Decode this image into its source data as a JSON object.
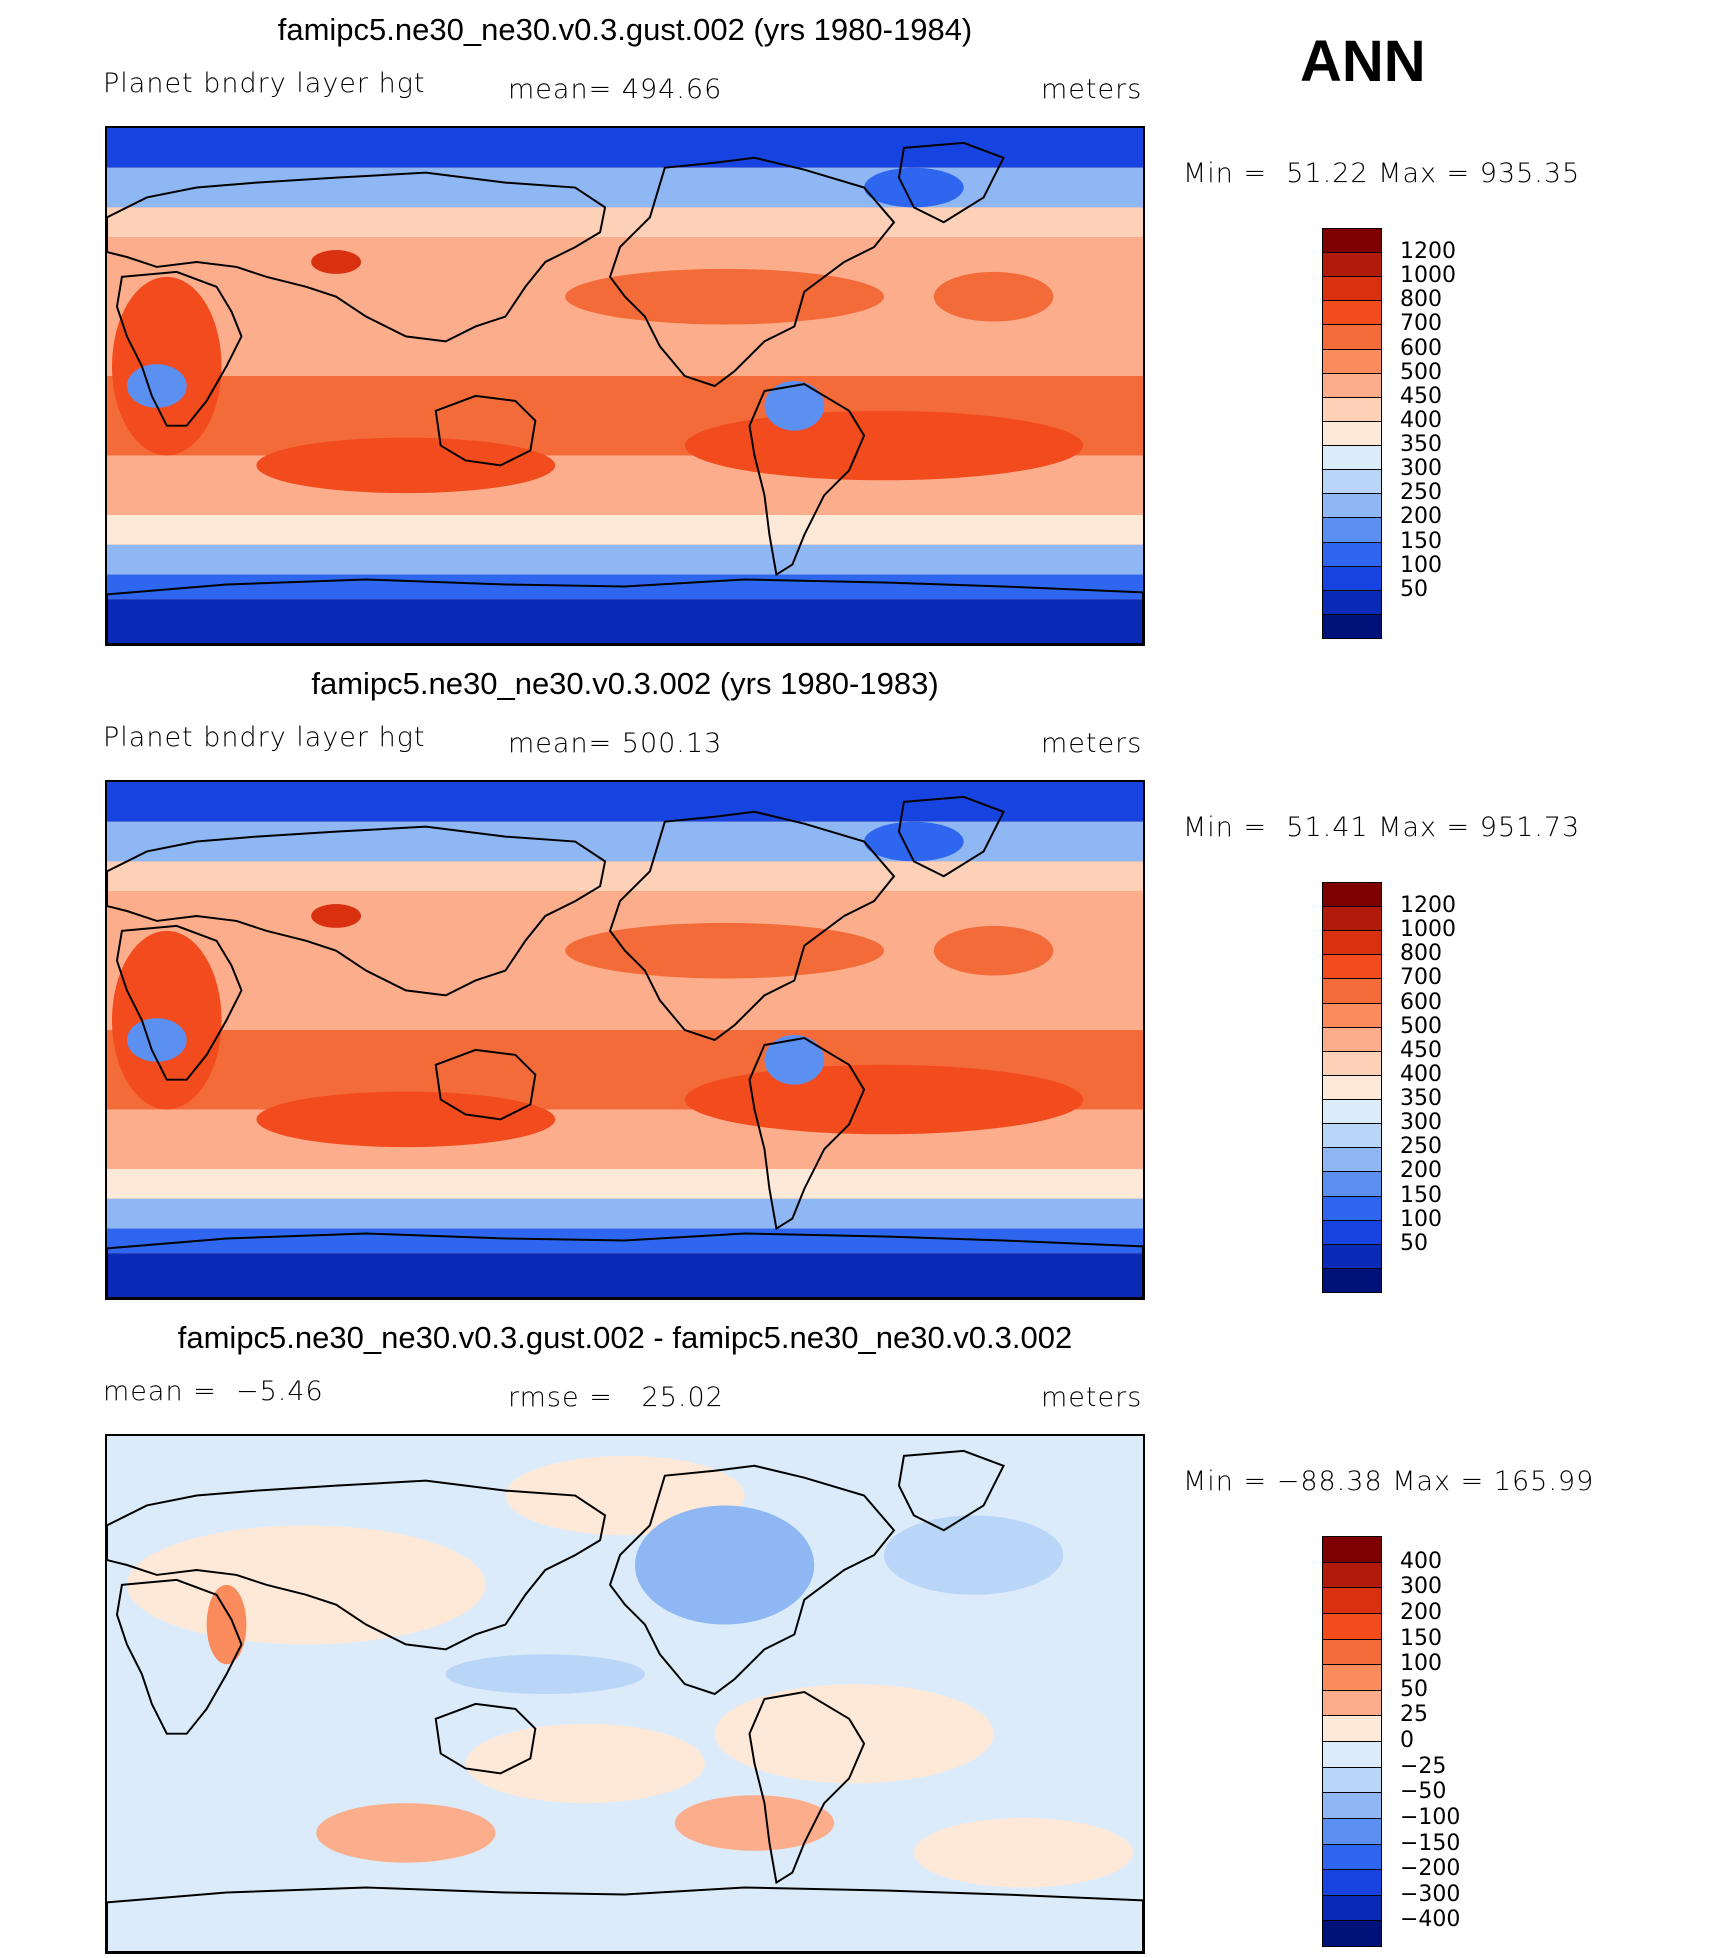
{
  "season": "ANN",
  "panels": [
    {
      "title": "famipc5.ne30_ne30.v0.3.gust.002 (yrs 1980-1984)",
      "left_label": "Planet bndry layer hgt",
      "center_label": "mean= 494.66",
      "right_label": "meters",
      "stats": "Min =  51.22 Max = 935.35",
      "kind": "abs"
    },
    {
      "title": "famipc5.ne30_ne30.v0.3.002 (yrs 1980-1983)",
      "left_label": "Planet bndry layer hgt",
      "center_label": "mean= 500.13",
      "right_label": "meters",
      "stats": "Min =  51.41 Max = 951.73",
      "kind": "abs"
    },
    {
      "title": "famipc5.ne30_ne30.v0.3.gust.002 - famipc5.ne30_ne30.v0.3.002",
      "left_label": "mean =  −5.46",
      "center_label": "rmse =   25.02",
      "right_label": "meters",
      "stats": "Min = −88.38 Max = 165.99",
      "kind": "diff"
    }
  ],
  "colorbar_abs": {
    "labels": [
      "1200",
      "1000",
      "800",
      "700",
      "600",
      "500",
      "450",
      "400",
      "350",
      "300",
      "250",
      "200",
      "150",
      "100",
      "50"
    ],
    "colors": [
      "#7f0000",
      "#b21b0a",
      "#d9300f",
      "#f24b1e",
      "#f46b3a",
      "#f98b5c",
      "#fcae8c",
      "#fdd0b8",
      "#fee9d8",
      "#dcebfa",
      "#b9d5f7",
      "#8fb7f3",
      "#5b8ff0",
      "#2f66f0",
      "#1744e0",
      "#0a2ab8",
      "#00117a"
    ]
  },
  "colorbar_diff": {
    "labels": [
      "400",
      "300",
      "200",
      "150",
      "100",
      "50",
      "25",
      "0",
      "−25",
      "−50",
      "−100",
      "−150",
      "−200",
      "−300",
      "−400"
    ],
    "colors": [
      "#7f0000",
      "#b21b0a",
      "#d9300f",
      "#f24b1e",
      "#f46b3a",
      "#f98b5c",
      "#fcae8c",
      "#fee9d8",
      "#dcebfa",
      "#b9d5f7",
      "#8fb7f3",
      "#5b8ff0",
      "#2f66f0",
      "#1744e0",
      "#0a2ab8",
      "#00117a"
    ]
  }
}
